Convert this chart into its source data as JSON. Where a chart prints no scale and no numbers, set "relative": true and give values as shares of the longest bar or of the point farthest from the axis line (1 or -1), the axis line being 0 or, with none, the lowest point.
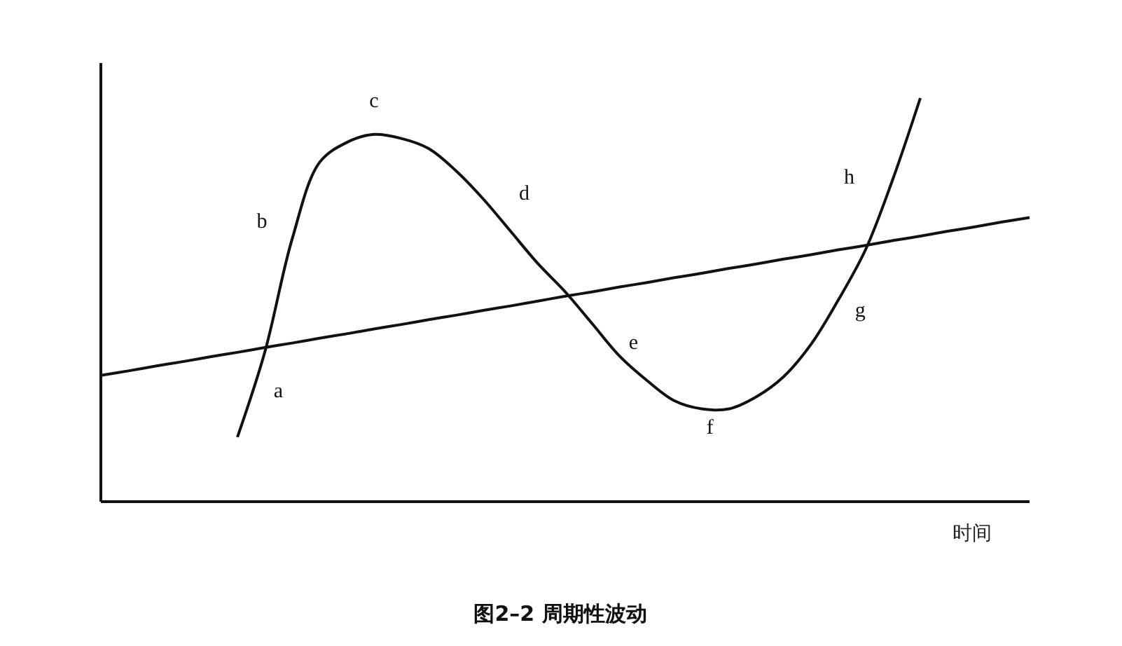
{
  "chart_data": {
    "type": "line",
    "relative": true,
    "title": "图2–2 周期性波动",
    "xlabel": "时间",
    "categories": [
      null,
      null,
      null,
      null,
      null,
      null,
      null,
      null,
      null,
      null,
      null,
      null,
      null,
      null,
      null,
      null,
      null,
      null,
      null,
      null,
      null,
      null,
      null,
      null,
      null,
      null,
      null,
      null,
      null,
      null,
      null,
      null,
      null,
      null,
      null
    ],
    "series": [
      {
        "color": "#111111",
        "values": [
          null,
          null,
          null,
          null,
          null,
          0.16,
          0.37,
          0.65,
          0.84,
          0.89,
          0.91,
          0.9,
          0.875,
          0.82,
          0.75,
          0.67,
          0.59,
          0.52,
          0.44,
          0.36,
          0.3,
          0.25,
          0.23,
          0.23,
          0.26,
          0.31,
          0.39,
          0.5,
          0.625,
          0.8,
          1,
          null,
          null,
          null,
          null
        ]
      },
      {
        "color": "#111111",
        "values": [
          0.313,
          0.324,
          0.336,
          0.347,
          0.359,
          0.37,
          0.382,
          0.393,
          0.405,
          0.416,
          0.428,
          0.439,
          0.451,
          0.462,
          0.474,
          0.485,
          0.497,
          0.509,
          0.52,
          0.532,
          0.543,
          0.555,
          0.566,
          0.578,
          0.589,
          0.601,
          0.612,
          0.624,
          0.635,
          0.647,
          0.658,
          0.67,
          0.681,
          0.693,
          0.704
        ]
      }
    ],
    "annotations": [
      "a",
      "b",
      "c",
      "d",
      "e",
      "f",
      "g",
      "h"
    ],
    "grid": false,
    "marker": "none",
    "line_style": "solid"
  }
}
